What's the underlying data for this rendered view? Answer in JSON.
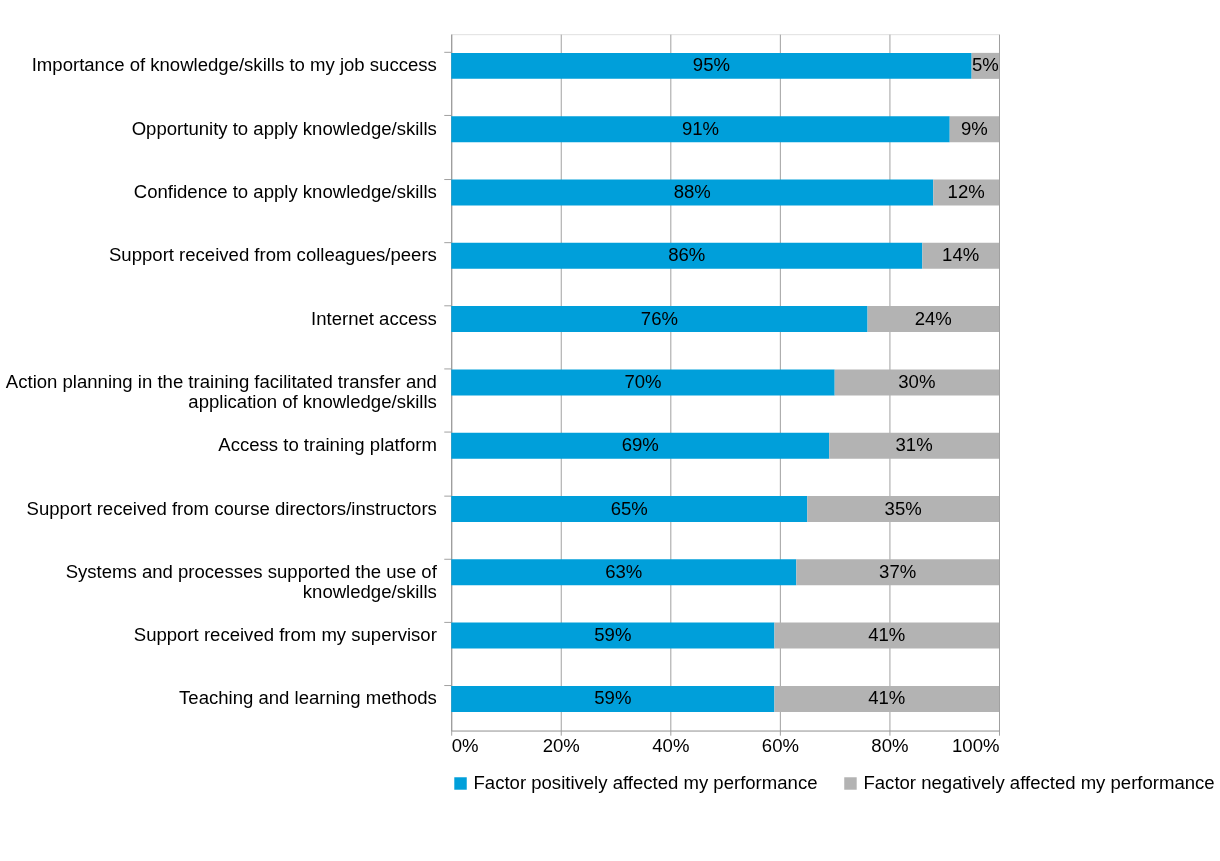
{
  "chart_data": {
    "type": "bar",
    "orientation": "horizontal",
    "stacked": true,
    "categories": [
      "Importance of knowledge/skills to my job success",
      "Opportunity to apply knowledge/skills",
      "Confidence to apply knowledge/skills",
      "Support received from colleagues/peers",
      "Internet access",
      "Action planning in the training facilitated transfer and application of knowledge/skills",
      "Access to training platform",
      "Support received from course directors/instructors",
      "Systems and processes supported the use of knowledge/skills",
      "Support received from my supervisor",
      "Teaching and learning methods"
    ],
    "series": [
      {
        "name": "Factor positively affected my performance",
        "color": "#009fda",
        "values": [
          95,
          91,
          88,
          86,
          76,
          70,
          69,
          65,
          63,
          59,
          59
        ],
        "value_labels": [
          "95%",
          "91%",
          "88%",
          "86%",
          "76%",
          "70%",
          "69%",
          "65%",
          "63%",
          "59%",
          "59%"
        ]
      },
      {
        "name": "Factor negatively affected my performance",
        "color": "#b3b3b3",
        "values": [
          5,
          9,
          12,
          14,
          24,
          30,
          31,
          35,
          37,
          41,
          41
        ],
        "value_labels": [
          "5%",
          "9%",
          "12%",
          "14%",
          "24%",
          "30%",
          "31%",
          "35%",
          "37%",
          "41%",
          "41%"
        ]
      }
    ],
    "xlim": [
      0,
      100
    ],
    "xticks": [
      {
        "value": 0,
        "label": "0%"
      },
      {
        "value": 20,
        "label": "20%"
      },
      {
        "value": 40,
        "label": "40%"
      },
      {
        "value": 60,
        "label": "60%"
      },
      {
        "value": 80,
        "label": "80%"
      },
      {
        "value": 100,
        "label": "100%"
      }
    ],
    "grid": "x",
    "legend": "bottom"
  }
}
